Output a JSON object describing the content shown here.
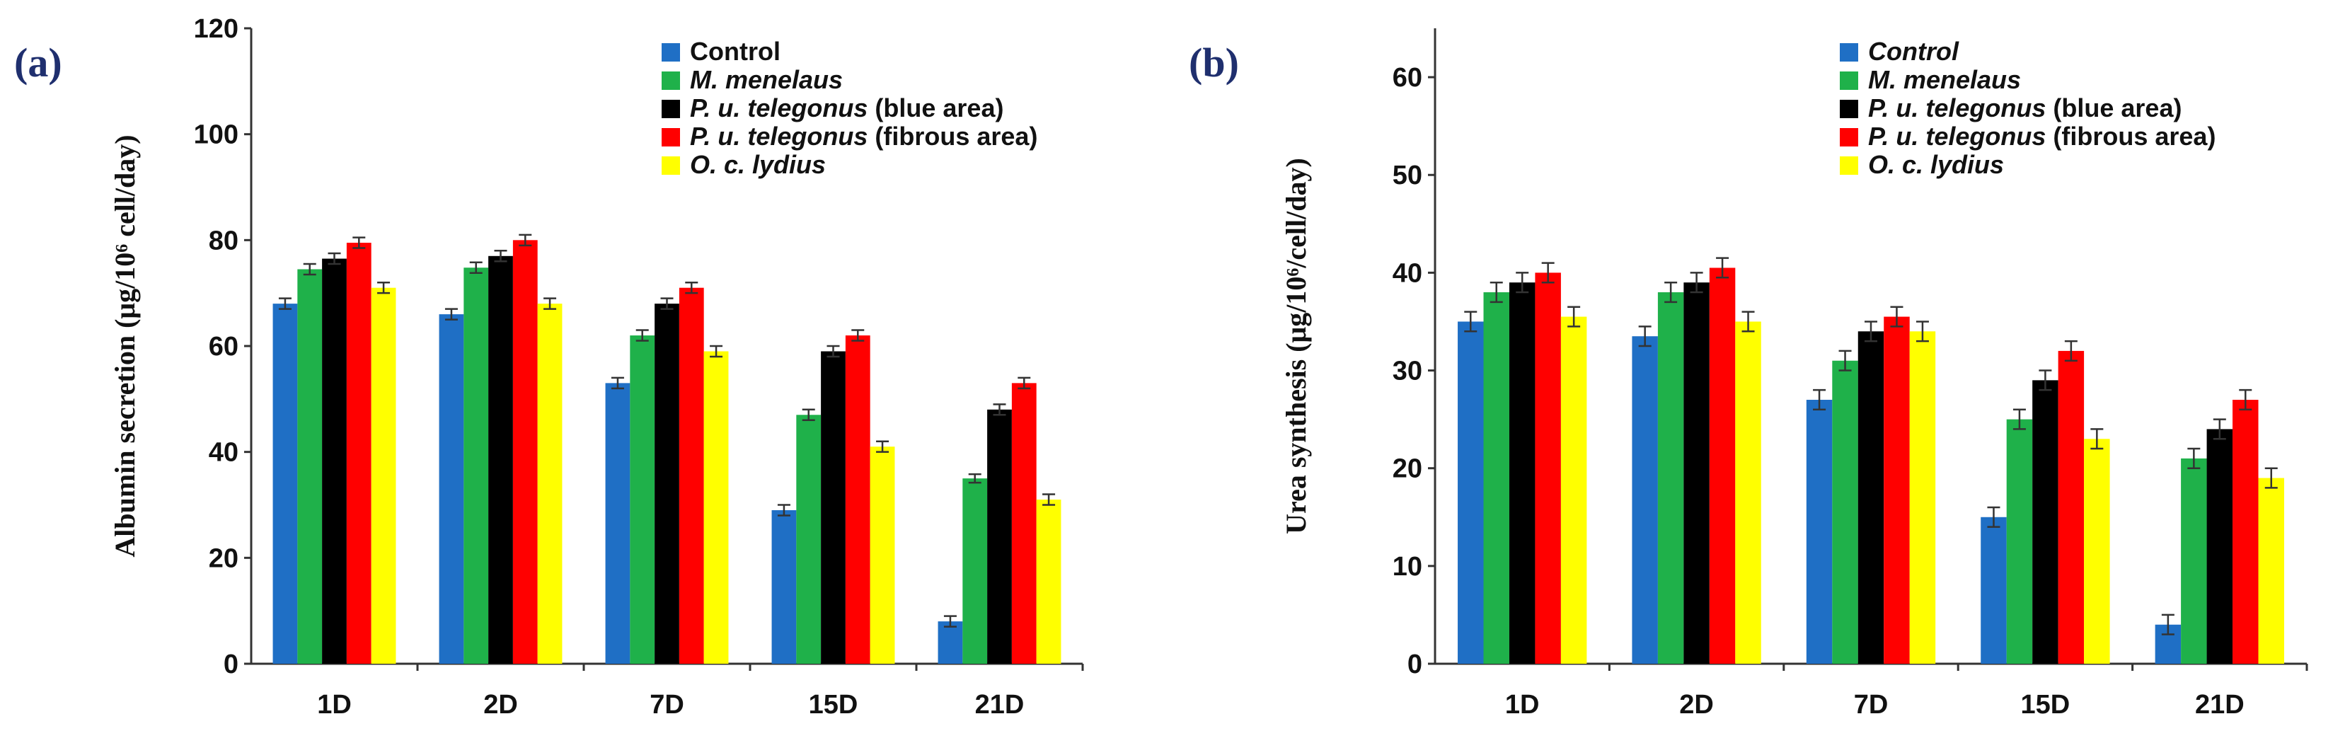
{
  "chart_data": [
    {
      "type": "bar",
      "panel_label": "(a)",
      "ylabel": "Albumin secretion (μg/10⁶ cell/day)",
      "ylim": [
        0,
        120
      ],
      "yticks": [
        0,
        20,
        40,
        60,
        80,
        100,
        120
      ],
      "categories": [
        "1D",
        "2D",
        "7D",
        "15D",
        "21D"
      ],
      "legend_position": "top-center",
      "series": [
        {
          "name": "Control",
          "italic_part": "",
          "rest": "Control",
          "color": "#1f6fc5",
          "values": [
            68,
            66,
            53,
            29,
            8
          ],
          "errors": [
            1,
            1,
            1,
            1,
            1
          ]
        },
        {
          "name": "M. menelaus",
          "italic_part": "M. menelaus",
          "rest": "",
          "color": "#1fb14a",
          "values": [
            74.5,
            74.8,
            62,
            47,
            35
          ],
          "errors": [
            1,
            1,
            1,
            1,
            0.8
          ]
        },
        {
          "name": "P. u. telegonus (blue area)",
          "italic_part": "P. u. telegonus",
          "rest": " (blue area)",
          "color": "#000000",
          "values": [
            76.5,
            77,
            68,
            59,
            48
          ],
          "errors": [
            1,
            1,
            1,
            1,
            1
          ]
        },
        {
          "name": "P. u. telegonus (fibrous area)",
          "italic_part": "P. u. telegonus",
          "rest": " (fibrous area)",
          "color": "#ff0000",
          "values": [
            79.5,
            80,
            71,
            62,
            53
          ],
          "errors": [
            1,
            1,
            1,
            1,
            1
          ]
        },
        {
          "name": "O. c. lydius",
          "italic_part": "O. c. lydius",
          "rest": "",
          "color": "#ffff00",
          "values": [
            71,
            68,
            59,
            41,
            31
          ],
          "errors": [
            1,
            1,
            1,
            1,
            1
          ]
        }
      ]
    },
    {
      "type": "bar",
      "panel_label": "(b)",
      "ylabel": "Urea synthesis (μg/10⁶/cell/day)",
      "ylim": [
        0,
        65
      ],
      "yticks": [
        0,
        10,
        20,
        30,
        40,
        50,
        60
      ],
      "categories": [
        "1D",
        "2D",
        "7D",
        "15D",
        "21D"
      ],
      "legend_position": "top-center",
      "series": [
        {
          "name": "Control",
          "italic_part": "Control",
          "rest": "",
          "color": "#1f6fc5",
          "values": [
            35,
            33.5,
            27,
            15,
            4
          ],
          "errors": [
            1,
            1,
            1,
            1,
            1
          ]
        },
        {
          "name": "M. menelaus",
          "italic_part": "M. menelaus",
          "rest": "",
          "color": "#1fb14a",
          "values": [
            38,
            38,
            31,
            25,
            21
          ],
          "errors": [
            1,
            1,
            1,
            1,
            1
          ]
        },
        {
          "name": "P. u. telegonus (blue area)",
          "italic_part": "P. u. telegonus",
          "rest": " (blue area)",
          "color": "#000000",
          "values": [
            39,
            39,
            34,
            29,
            24
          ],
          "errors": [
            1,
            1,
            1,
            1,
            1
          ]
        },
        {
          "name": "P. u. telegonus (fibrous area)",
          "italic_part": "P. u. telegonus",
          "rest": " (fibrous area)",
          "color": "#ff0000",
          "values": [
            40,
            40.5,
            35.5,
            32,
            27
          ],
          "errors": [
            1,
            1,
            1,
            1,
            1
          ]
        },
        {
          "name": "O. c. lydius",
          "italic_part": "O. c. lydius",
          "rest": "",
          "color": "#ffff00",
          "values": [
            35.5,
            35,
            34,
            23,
            19
          ],
          "errors": [
            1,
            1,
            1,
            1,
            1
          ]
        }
      ]
    }
  ]
}
